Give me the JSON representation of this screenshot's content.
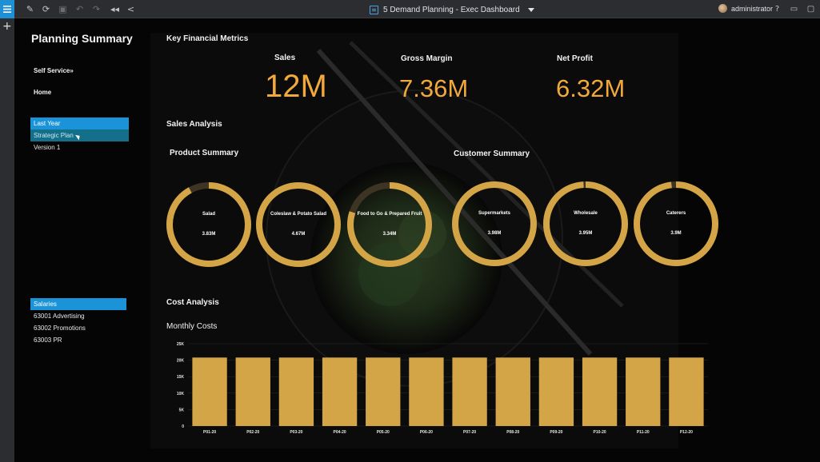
{
  "toolbar": {
    "document_title": "5 Demand Planning - Exec Dashboard",
    "user_name": "administrator"
  },
  "sidebar": {
    "title": "Planning Summary",
    "links": [
      {
        "label": "Self Service»"
      },
      {
        "label": "Home"
      }
    ],
    "scenarios": [
      {
        "label": "Last Year",
        "state": "selected"
      },
      {
        "label": "Strategic Plan",
        "state": "hover"
      },
      {
        "label": "Version 1",
        "state": "normal"
      }
    ],
    "accounts": [
      {
        "label": "Salaries",
        "state": "selected"
      },
      {
        "label": "63001 Advertising",
        "state": "normal"
      },
      {
        "label": "63002 Promotions",
        "state": "normal"
      },
      {
        "label": "63003 PR",
        "state": "normal"
      }
    ]
  },
  "key_metrics": {
    "title": "Key Financial Metrics",
    "items": [
      {
        "label": "Sales",
        "value": "12M"
      },
      {
        "label": "Gross Margin",
        "value": "7.36M"
      },
      {
        "label": "Net Profit",
        "value": "6.32M"
      }
    ]
  },
  "sales_analysis": {
    "title": "Sales Analysis",
    "product_summary": {
      "title": "Product Summary",
      "donuts": [
        {
          "name": "Salad",
          "value": "3.83M",
          "fraction": 0.92
        },
        {
          "name": "Coleslaw & Potato Salad",
          "value": "4.67M",
          "fraction": 1.0
        },
        {
          "name": "Food to Go & Prepared Fruit",
          "value": "3.34M",
          "fraction": 0.8
        }
      ]
    },
    "customer_summary": {
      "title": "Customer Summary",
      "donuts": [
        {
          "name": "Supermarkets",
          "value": "3.98M",
          "fraction": 1.0
        },
        {
          "name": "Wholesale",
          "value": "3.95M",
          "fraction": 0.99
        },
        {
          "name": "Caterers",
          "value": "3.9M",
          "fraction": 0.98
        }
      ]
    }
  },
  "cost_analysis": {
    "title": "Cost Analysis",
    "chart_title": "Monthly Costs"
  },
  "colors": {
    "accent": "#f2a93b",
    "bar": "#d4a546",
    "ring": "#d4a546",
    "ring_track": "#3d3424",
    "selected": "#1a93d9",
    "hover": "#136f8a"
  },
  "chart_data": {
    "type": "bar",
    "title": "Monthly Costs",
    "categories": [
      "P01-20",
      "P02-20",
      "P03-20",
      "P04-20",
      "P05-20",
      "P06-20",
      "P07-20",
      "P08-20",
      "P09-20",
      "P10-20",
      "P11-20",
      "P12-20"
    ],
    "values": [
      20800,
      20800,
      20800,
      20800,
      20800,
      20800,
      20800,
      20800,
      20800,
      20800,
      20800,
      20800
    ],
    "yticks": [
      "0",
      "5K",
      "10K",
      "15K",
      "20K",
      "25K"
    ],
    "ylim": [
      0,
      25000
    ],
    "grid": true
  }
}
